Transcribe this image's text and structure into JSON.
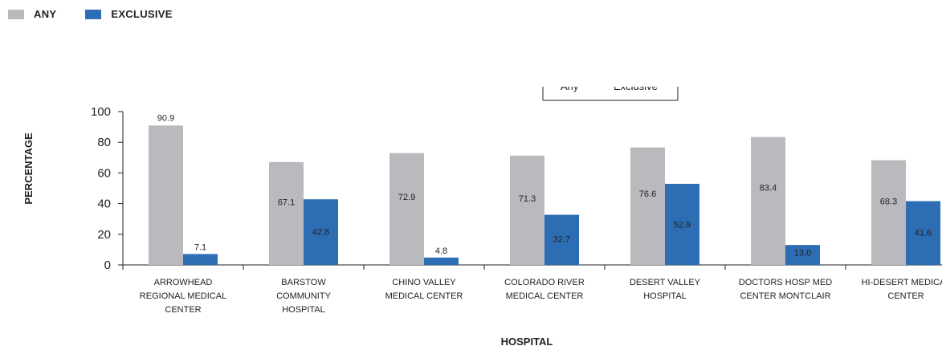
{
  "colors": {
    "any": "#b9babd",
    "exclusive": "#2d6db4"
  },
  "legend": [
    {
      "label": "ANY",
      "color": "#b9babd"
    },
    {
      "label": "EXCLUSIVE",
      "color": "#2d6db4"
    }
  ],
  "inner_legend": {
    "label_any": "Any",
    "label_exclusive": "Exclusive"
  },
  "chart_data": {
    "type": "bar",
    "xlabel": "HOSPITAL",
    "ylabel": "PERCENTAGE",
    "ylim": [
      0,
      100
    ],
    "yticks": [
      0,
      20,
      40,
      60,
      80,
      100
    ],
    "categories": [
      [
        "ARROWHEAD",
        "REGIONAL MEDICAL",
        "CENTER"
      ],
      [
        "BARSTOW",
        "COMMUNITY",
        "HOSPITAL"
      ],
      [
        "CHINO VALLEY",
        "MEDICAL CENTER"
      ],
      [
        "COLORADO RIVER",
        "MEDICAL CENTER"
      ],
      [
        "DESERT VALLEY",
        "HOSPITAL"
      ],
      [
        "DOCTORS HOSP MED",
        "CENTER MONTCLAIR"
      ],
      [
        "HI-DESERT MEDICAL",
        "CENTER"
      ]
    ],
    "series": [
      {
        "name": "ANY",
        "color": "#b9babd",
        "values": [
          90.9,
          67.1,
          72.9,
          71.3,
          76.6,
          83.4,
          68.3
        ],
        "labels": [
          "90.9",
          "67.1",
          "72.9",
          "71.3",
          "76.6",
          "83.4",
          "68.3"
        ]
      },
      {
        "name": "EXCLUSIVE",
        "color": "#2d6db4",
        "values": [
          7.1,
          42.8,
          4.8,
          32.7,
          52.9,
          13.0,
          41.6
        ],
        "labels": [
          "7.1",
          "42.8",
          "4.8",
          "32.7",
          "52.9",
          "13.0",
          "41.6"
        ]
      }
    ]
  }
}
